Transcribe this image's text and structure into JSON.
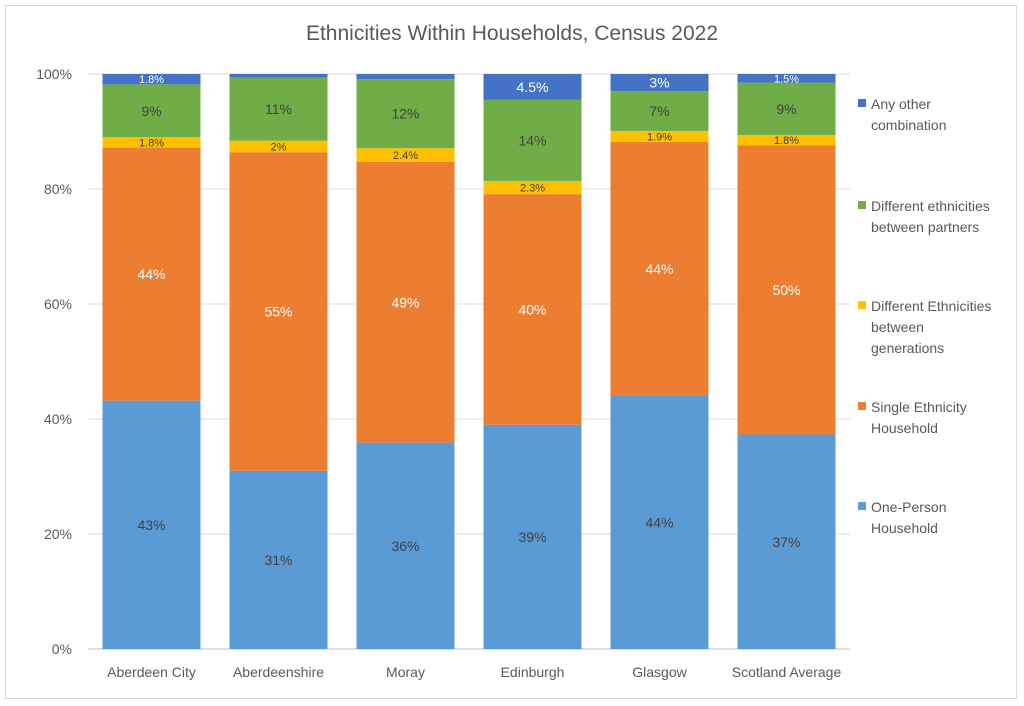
{
  "chart_data": {
    "type": "bar",
    "stacked": true,
    "title": "Ethnicities Within Households, Census 2022",
    "xlabel": "",
    "ylabel": "",
    "ylim": [
      0,
      100
    ],
    "yticks": [
      "0%",
      "20%",
      "40%",
      "60%",
      "80%",
      "100%"
    ],
    "grid": true,
    "legend_position": "right",
    "categories": [
      "Aberdeen City",
      "Aberdeenshire",
      "Moray",
      "Edinburgh",
      "Glasgow",
      "Scotland Average"
    ],
    "series": [
      {
        "name": "One-Person Household",
        "color": "#5b9bd5",
        "values": [
          43.2,
          31.0,
          35.9,
          39.0,
          44.0,
          37.3
        ],
        "labels": [
          "43%",
          "31%",
          "36%",
          "39%",
          "44%",
          "37%"
        ],
        "label_color": "#404040"
      },
      {
        "name": "Single Ethnicity Household",
        "color": "#ed7d31",
        "values": [
          44.0,
          55.4,
          48.8,
          40.1,
          44.2,
          50.3
        ],
        "labels": [
          "44%",
          "55%",
          "49%",
          "40%",
          "44%",
          "50%"
        ],
        "label_color": "#ffffff"
      },
      {
        "name": "Different Ethnicities between generations",
        "color": "#ffc000",
        "values": [
          1.8,
          2.0,
          2.4,
          2.3,
          1.9,
          1.8
        ],
        "labels": [
          "1.8%",
          "2%",
          "2.4%",
          "2.3%",
          "1.9%",
          "1.8%"
        ],
        "label_color": "#404040"
      },
      {
        "name": "Different ethnicities between partners",
        "color": "#70ad47",
        "values": [
          9.2,
          11.0,
          12.0,
          14.1,
          6.9,
          9.1
        ],
        "labels": [
          "9%",
          "11%",
          "12%",
          "14%",
          "7%",
          "9%"
        ],
        "label_color": "#404040"
      },
      {
        "name": "Any other combination",
        "color": "#4472c4",
        "values": [
          1.8,
          0.6,
          0.9,
          4.5,
          3.0,
          1.5
        ],
        "labels": [
          "1.8%",
          "",
          "",
          "4.5%",
          "3%",
          "1.5%"
        ],
        "label_color": "#ffffff"
      }
    ],
    "legend_lines": [
      [
        "Any other",
        "combination"
      ],
      [
        "Different ethnicities",
        "between partners"
      ],
      [
        "Different Ethnicities",
        "between",
        "generations"
      ],
      [
        "Single Ethnicity",
        "Household"
      ],
      [
        "One-Person",
        "Household"
      ]
    ]
  }
}
